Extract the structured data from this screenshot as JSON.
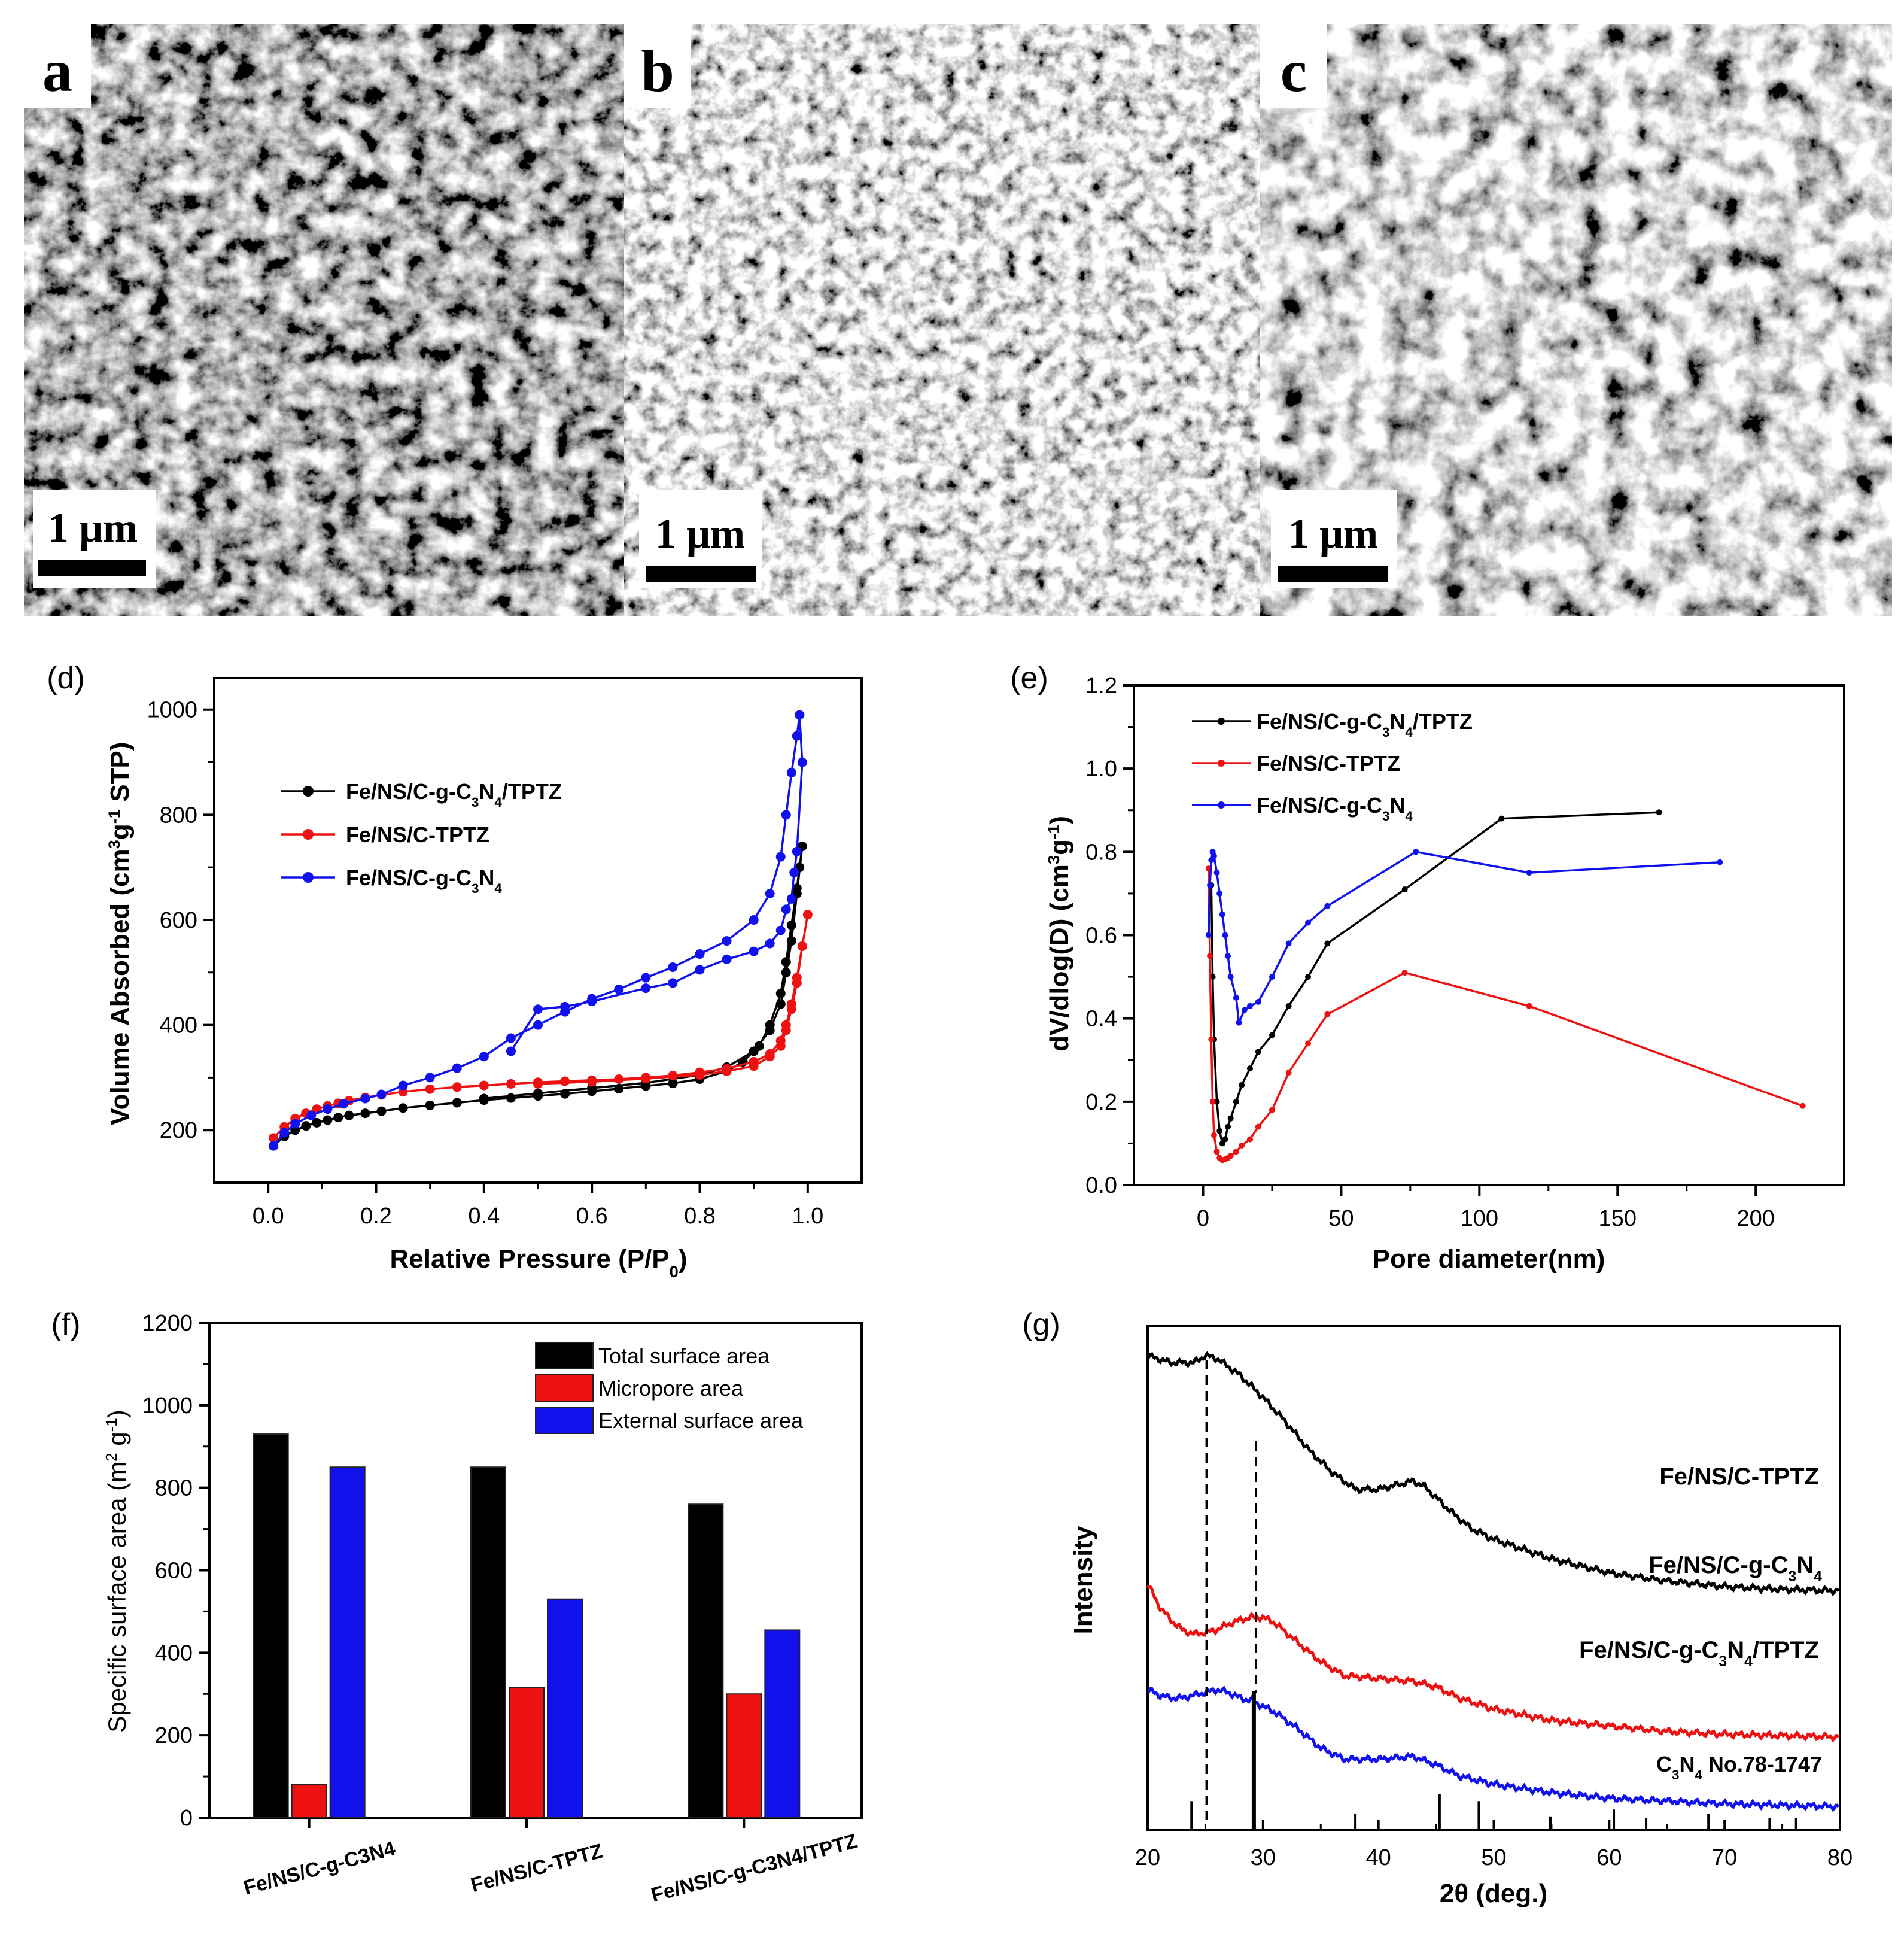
{
  "panels": {
    "a": {
      "letter": "a",
      "scale": "1 μm"
    },
    "b": {
      "letter": "b",
      "scale": "1 μm"
    },
    "c": {
      "letter": "c",
      "scale": "1 μm"
    }
  },
  "colors": {
    "black": "#000000",
    "red": "#ee1111",
    "blue": "#1111ee"
  },
  "chart_data": [
    {
      "id": "d",
      "panel_label": "(d)",
      "type": "line",
      "xlabel": "Relative Pressure (P/P",
      "xlabel_sub": "0",
      "xlabel_end": ")",
      "ylabel": "Volume Absorbed (cm",
      "ylabel_sup": "3",
      "ylabel_mid": "g",
      "ylabel_sup2": "-1",
      "ylabel_end": " STP)",
      "xlim": [
        -0.1,
        1.1
      ],
      "ylim": [
        100,
        1060
      ],
      "xticks": [
        0.0,
        0.2,
        0.4,
        0.6,
        0.8,
        1.0
      ],
      "xtick_labels": [
        "0.0",
        "0.2",
        "0.4",
        "0.6",
        "0.8",
        "1.0"
      ],
      "yticks": [
        200,
        400,
        600,
        800,
        1000
      ],
      "ytick_labels": [
        "200",
        "400",
        "600",
        "800",
        "1000"
      ],
      "legend_position": "upper-left",
      "series": [
        {
          "name": "Fe/NS/C-g-C3N4/TPTZ",
          "legend": [
            "Fe/NS/C-g-C",
            "3",
            "N",
            "4",
            "/TPTZ"
          ],
          "color": "black",
          "x": [
            0.01,
            0.03,
            0.05,
            0.07,
            0.09,
            0.11,
            0.13,
            0.15,
            0.18,
            0.21,
            0.25,
            0.3,
            0.35,
            0.4,
            0.45,
            0.5,
            0.55,
            0.6,
            0.65,
            0.7,
            0.75,
            0.8,
            0.85,
            0.88,
            0.91,
            0.93,
            0.95,
            0.96,
            0.97,
            0.98,
            0.985,
            0.99,
            0.98,
            0.97,
            0.96,
            0.95,
            0.93,
            0.9,
            0.85,
            0.8,
            0.7,
            0.6,
            0.5,
            0.4
          ],
          "y": [
            170,
            188,
            200,
            208,
            214,
            219,
            224,
            228,
            232,
            236,
            242,
            247,
            252,
            257,
            261,
            265,
            269,
            274,
            279,
            284,
            289,
            297,
            312,
            330,
            360,
            400,
            460,
            520,
            590,
            660,
            700,
            740,
            650,
            560,
            500,
            440,
            390,
            350,
            320,
            305,
            290,
            280,
            270,
            260
          ]
        },
        {
          "name": "Fe/NS/C-TPTZ",
          "legend": [
            "Fe/NS/C-TPTZ"
          ],
          "color": "red",
          "x": [
            0.01,
            0.03,
            0.05,
            0.07,
            0.09,
            0.11,
            0.13,
            0.15,
            0.18,
            0.21,
            0.25,
            0.3,
            0.35,
            0.4,
            0.45,
            0.5,
            0.55,
            0.6,
            0.65,
            0.7,
            0.75,
            0.8,
            0.85,
            0.9,
            0.93,
            0.95,
            0.96,
            0.97,
            0.98,
            0.99,
            1.0,
            0.99,
            0.98,
            0.97,
            0.96,
            0.95,
            0.93,
            0.9,
            0.85,
            0.8,
            0.7,
            0.6,
            0.5
          ],
          "y": [
            185,
            206,
            222,
            232,
            240,
            246,
            251,
            256,
            262,
            267,
            273,
            278,
            282,
            285,
            288,
            291,
            293,
            295,
            297,
            300,
            304,
            310,
            317,
            330,
            345,
            370,
            400,
            440,
            490,
            550,
            610,
            550,
            480,
            430,
            390,
            360,
            340,
            322,
            312,
            305,
            298,
            292,
            288
          ]
        },
        {
          "name": "Fe/NS/C-g-C3N4",
          "legend": [
            "Fe/NS/C-g-C",
            "3",
            "N",
            "4"
          ],
          "color": "blue",
          "x": [
            0.01,
            0.03,
            0.05,
            0.08,
            0.11,
            0.14,
            0.18,
            0.21,
            0.25,
            0.3,
            0.35,
            0.4,
            0.45,
            0.5,
            0.55,
            0.6,
            0.65,
            0.7,
            0.75,
            0.8,
            0.85,
            0.9,
            0.93,
            0.95,
            0.96,
            0.97,
            0.98,
            0.985,
            0.99,
            0.98,
            0.975,
            0.97,
            0.96,
            0.95,
            0.93,
            0.9,
            0.85,
            0.8,
            0.75,
            0.7,
            0.6,
            0.55,
            0.5,
            0.45
          ],
          "y": [
            170,
            195,
            212,
            228,
            240,
            250,
            260,
            268,
            285,
            300,
            318,
            340,
            375,
            400,
            425,
            450,
            468,
            490,
            510,
            535,
            560,
            600,
            650,
            720,
            800,
            880,
            950,
            990,
            900,
            730,
            690,
            640,
            620,
            580,
            555,
            540,
            525,
            505,
            480,
            470,
            445,
            435,
            430,
            350
          ]
        }
      ]
    },
    {
      "id": "e",
      "panel_label": "(e)",
      "type": "line",
      "xlabel": "Pore diameter(nm)",
      "ylabel": "dV/dlog(D) (cm",
      "ylabel_sup": "3",
      "ylabel_mid": "g",
      "ylabel_sup2": "-1",
      "ylabel_end": ")",
      "xlim": [
        -25,
        232
      ],
      "ylim": [
        0,
        1.2
      ],
      "xticks": [
        0,
        50,
        100,
        150,
        200
      ],
      "xtick_labels": [
        "0",
        "50",
        "100",
        "150",
        "200"
      ],
      "yticks": [
        0.0,
        0.2,
        0.4,
        0.6,
        0.8,
        1.0,
        1.2
      ],
      "ytick_labels": [
        "0.0",
        "0.2",
        "0.4",
        "0.6",
        "0.8",
        "1.0",
        "1.2"
      ],
      "legend_position": "upper-left",
      "series": [
        {
          "name": "Fe/NS/C-g-C3N4/TPTZ",
          "legend": [
            "Fe/NS/C-g-C",
            "3",
            "N",
            "4",
            "/TPTZ"
          ],
          "color": "black",
          "x": [
            3,
            3.5,
            4,
            5,
            6,
            7,
            8,
            9,
            10,
            12,
            14,
            17,
            20,
            25,
            31,
            38,
            45,
            73,
            108,
            165
          ],
          "y": [
            0.72,
            0.5,
            0.35,
            0.2,
            0.13,
            0.1,
            0.11,
            0.14,
            0.16,
            0.2,
            0.24,
            0.28,
            0.32,
            0.36,
            0.43,
            0.5,
            0.58,
            0.71,
            0.88,
            0.895
          ]
        },
        {
          "name": "Fe/NS/C-TPTZ",
          "legend": [
            "Fe/NS/C-TPTZ"
          ],
          "color": "red",
          "x": [
            2,
            2.5,
            3,
            3.5,
            4,
            5,
            6,
            7,
            8,
            9,
            10,
            12,
            14,
            17,
            20,
            25,
            31,
            38,
            45,
            73,
            118,
            217
          ],
          "y": [
            0.76,
            0.55,
            0.35,
            0.2,
            0.12,
            0.08,
            0.065,
            0.06,
            0.062,
            0.065,
            0.07,
            0.08,
            0.095,
            0.11,
            0.14,
            0.18,
            0.27,
            0.34,
            0.41,
            0.51,
            0.43,
            0.19
          ]
        },
        {
          "name": "Fe/NS/C-g-C3N4",
          "legend": [
            "Fe/NS/C-g-C",
            "3",
            "N",
            "4"
          ],
          "color": "blue",
          "x": [
            2,
            2.5,
            3,
            3.5,
            4,
            5,
            6,
            7,
            8,
            9,
            10,
            12,
            13,
            15,
            17,
            20,
            25,
            31,
            38,
            45,
            77,
            118,
            187
          ],
          "y": [
            0.6,
            0.72,
            0.78,
            0.8,
            0.79,
            0.75,
            0.7,
            0.65,
            0.6,
            0.55,
            0.5,
            0.45,
            0.39,
            0.42,
            0.43,
            0.44,
            0.5,
            0.58,
            0.63,
            0.67,
            0.8,
            0.75,
            0.775
          ]
        }
      ]
    },
    {
      "id": "f",
      "panel_label": "(f)",
      "type": "bar",
      "ylabel": "Specific surface area (m",
      "ylabel_sup": "2",
      "ylabel_mid": " g",
      "ylabel_sup2": "-1",
      "ylabel_end": ")",
      "ylim": [
        0,
        1200
      ],
      "yticks": [
        0,
        200,
        400,
        600,
        800,
        1000,
        1200
      ],
      "ytick_labels": [
        "0",
        "200",
        "400",
        "600",
        "800",
        "1000",
        "1200"
      ],
      "categories": [
        "Fe/NS/C-g-C3N4",
        "Fe/NS/C-TPTZ",
        "Fe/NS/C-g-C3N4/TPTZ"
      ],
      "legend_position": "upper-right",
      "series": [
        {
          "name": "Total surface area",
          "color": "black",
          "values": [
            930,
            850,
            760
          ]
        },
        {
          "name": "Micropore area",
          "color": "red",
          "values": [
            80,
            315,
            300
          ]
        },
        {
          "name": "External surface area",
          "color": "blue",
          "values": [
            850,
            530,
            455
          ]
        }
      ]
    },
    {
      "id": "g",
      "panel_label": "(g)",
      "type": "line",
      "xlabel": "2θ (deg.)",
      "ylabel": "Intensity",
      "xlim": [
        20,
        80
      ],
      "xticks": [
        20,
        30,
        40,
        50,
        60,
        70,
        80
      ],
      "xtick_labels": [
        "20",
        "30",
        "40",
        "50",
        "60",
        "70",
        "80"
      ],
      "reference_label": [
        "C",
        "3",
        "N",
        "4",
        "  No.78-1747"
      ],
      "reference_lines": [
        25.1,
        29.4
      ],
      "reference_peaks": [
        {
          "x": 23.8,
          "h": 0.21
        },
        {
          "x": 29.2,
          "h": 1.0
        },
        {
          "x": 38.0,
          "h": 0.12
        },
        {
          "x": 45.3,
          "h": 0.26
        },
        {
          "x": 48.7,
          "h": 0.21
        },
        {
          "x": 54.9,
          "h": 0.1
        },
        {
          "x": 60.4,
          "h": 0.15
        },
        {
          "x": 63.2,
          "h": 0.09
        },
        {
          "x": 68.6,
          "h": 0.12
        },
        {
          "x": 73.9,
          "h": 0.09
        },
        {
          "x": 76.2,
          "h": 0.09
        }
      ],
      "series": [
        {
          "name": "Fe/NS/C-TPTZ",
          "label": [
            "Fe/NS/C-TPTZ"
          ],
          "color": "black",
          "x": [
            20,
            22,
            24,
            25,
            26,
            27,
            28,
            30,
            32,
            34,
            36,
            38,
            40,
            42,
            43,
            44,
            46,
            48,
            50,
            55,
            60,
            65,
            70,
            75,
            80
          ],
          "y": [
            1.0,
            0.975,
            0.975,
            1.0,
            0.99,
            0.96,
            0.93,
            0.85,
            0.76,
            0.66,
            0.58,
            0.52,
            0.52,
            0.54,
            0.55,
            0.53,
            0.45,
            0.38,
            0.34,
            0.27,
            0.22,
            0.19,
            0.17,
            0.16,
            0.155
          ]
        },
        {
          "name": "Fe/NS/C-g-C3N4",
          "label": [
            "Fe/NS/C-g-C",
            "3",
            "N",
            "4"
          ],
          "color": "red",
          "x": [
            20,
            21,
            22,
            23,
            24,
            25,
            26,
            27,
            28,
            29,
            30,
            31,
            33,
            35,
            37,
            40,
            43,
            45,
            47,
            50,
            55,
            60,
            65,
            70,
            80
          ],
          "y": [
            0.18,
            0.1,
            0.05,
            0.015,
            0.0,
            0.005,
            0.015,
            0.035,
            0.05,
            0.06,
            0.06,
            0.04,
            -0.03,
            -0.1,
            -0.15,
            -0.16,
            -0.17,
            -0.19,
            -0.23,
            -0.27,
            -0.31,
            -0.33,
            -0.35,
            -0.36,
            -0.37
          ]
        },
        {
          "name": "Fe/NS/C-g-C3N4/TPTZ",
          "label": [
            "Fe/NS/C-g-C",
            "3",
            "N",
            "4",
            "/TPTZ"
          ],
          "color": "blue",
          "x": [
            20,
            21,
            22,
            23,
            24,
            25,
            26,
            27,
            28,
            29,
            30,
            31,
            33,
            35,
            37,
            40,
            43,
            45,
            47,
            50,
            55,
            60,
            65,
            70,
            80
          ],
          "y": [
            -0.2,
            -0.22,
            -0.23,
            -0.23,
            -0.22,
            -0.21,
            -0.2,
            -0.21,
            -0.23,
            -0.24,
            -0.26,
            -0.28,
            -0.34,
            -0.41,
            -0.45,
            -0.45,
            -0.44,
            -0.47,
            -0.51,
            -0.54,
            -0.57,
            -0.59,
            -0.6,
            -0.61,
            -0.62
          ]
        }
      ]
    }
  ]
}
